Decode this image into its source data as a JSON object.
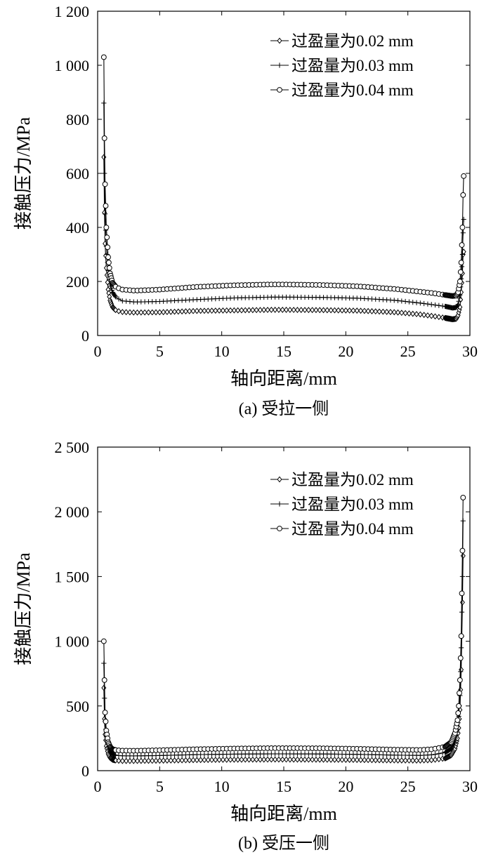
{
  "chart_data": [
    {
      "type": "line",
      "caption": "(a) 受拉一侧",
      "xlabel": "轴向距离/mm",
      "ylabel": "接触压力/MPa",
      "xlim": [
        0,
        30
      ],
      "ylim": [
        0,
        1200
      ],
      "xticks": [
        "0",
        "5",
        "10",
        "15",
        "20",
        "25",
        "30"
      ],
      "yticks": [
        "0",
        "200",
        "400",
        "600",
        "800",
        "1 000",
        "1 200"
      ],
      "legend_position": "top-right",
      "grid": false,
      "series": [
        {
          "name": "过盈量为0.02 mm",
          "marker": "diamond",
          "points": [
            [
              0.5,
              660
            ],
            [
              0.55,
              455
            ],
            [
              0.6,
              340
            ],
            [
              0.7,
              250
            ],
            [
              0.85,
              170
            ],
            [
              1.0,
              130
            ],
            [
              1.2,
              105
            ],
            [
              1.5,
              92
            ],
            [
              2,
              87
            ],
            [
              3,
              85
            ],
            [
              5,
              86
            ],
            [
              8,
              91
            ],
            [
              11,
              93
            ],
            [
              14,
              95
            ],
            [
              15,
              95
            ],
            [
              18,
              94
            ],
            [
              21,
              92
            ],
            [
              24,
              86
            ],
            [
              26,
              78
            ],
            [
              27,
              72
            ],
            [
              28,
              65
            ],
            [
              28.6,
              60
            ],
            [
              28.9,
              62
            ],
            [
              29.05,
              75
            ],
            [
              29.2,
              105
            ],
            [
              29.3,
              160
            ],
            [
              29.4,
              230
            ],
            [
              29.45,
              300
            ],
            [
              29.5,
              310
            ]
          ]
        },
        {
          "name": "过盈量为0.03 mm",
          "marker": "plus",
          "points": [
            [
              0.5,
              860
            ],
            [
              0.55,
              600
            ],
            [
              0.6,
              450
            ],
            [
              0.7,
              330
            ],
            [
              0.85,
              240
            ],
            [
              1.0,
              190
            ],
            [
              1.2,
              160
            ],
            [
              1.5,
              140
            ],
            [
              2,
              128
            ],
            [
              3,
              124
            ],
            [
              5,
              126
            ],
            [
              8,
              133
            ],
            [
              11,
              139
            ],
            [
              14,
              142
            ],
            [
              15,
              142
            ],
            [
              18,
              141
            ],
            [
              21,
              138
            ],
            [
              24,
              130
            ],
            [
              26,
              120
            ],
            [
              27,
              114
            ],
            [
              28,
              108
            ],
            [
              28.6,
              102
            ],
            [
              28.9,
              104
            ],
            [
              29.05,
              115
            ],
            [
              29.2,
              150
            ],
            [
              29.3,
              210
            ],
            [
              29.4,
              300
            ],
            [
              29.45,
              380
            ],
            [
              29.5,
              430
            ]
          ]
        },
        {
          "name": "过盈量为0.04 mm",
          "marker": "circle",
          "points": [
            [
              0.5,
              1030
            ],
            [
              0.55,
              730
            ],
            [
              0.6,
              560
            ],
            [
              0.7,
              400
            ],
            [
              0.85,
              290
            ],
            [
              1.0,
              230
            ],
            [
              1.2,
              195
            ],
            [
              1.5,
              178
            ],
            [
              2,
              170
            ],
            [
              3,
              166
            ],
            [
              5,
              170
            ],
            [
              8,
              180
            ],
            [
              11,
              186
            ],
            [
              14,
              189
            ],
            [
              15,
              189
            ],
            [
              18,
              187
            ],
            [
              21,
              182
            ],
            [
              24,
              172
            ],
            [
              26,
              162
            ],
            [
              27,
              157
            ],
            [
              28,
              150
            ],
            [
              28.6,
              146
            ],
            [
              28.9,
              148
            ],
            [
              29.05,
              160
            ],
            [
              29.2,
              200
            ],
            [
              29.3,
              270
            ],
            [
              29.4,
              400
            ],
            [
              29.45,
              520
            ],
            [
              29.5,
              590
            ]
          ]
        }
      ]
    },
    {
      "type": "line",
      "caption": "(b) 受压一侧",
      "xlabel": "轴向距离/mm",
      "ylabel": "接触压力/MPa",
      "xlim": [
        0,
        30
      ],
      "ylim": [
        0,
        2500
      ],
      "xticks": [
        "0",
        "5",
        "10",
        "15",
        "20",
        "25",
        "30"
      ],
      "yticks": [
        "0",
        "500",
        "1 000",
        "1 500",
        "2 000",
        "2 500"
      ],
      "legend_position": "top-right",
      "grid": false,
      "series": [
        {
          "name": "过盈量为0.02 mm",
          "marker": "diamond",
          "points": [
            [
              0.5,
              640
            ],
            [
              0.55,
              400
            ],
            [
              0.6,
              280
            ],
            [
              0.7,
              190
            ],
            [
              0.85,
              130
            ],
            [
              1.0,
              100
            ],
            [
              1.2,
              85
            ],
            [
              1.5,
              78
            ],
            [
              2,
              75
            ],
            [
              3,
              75
            ],
            [
              5,
              77
            ],
            [
              8,
              82
            ],
            [
              11,
              85
            ],
            [
              14,
              86
            ],
            [
              15,
              86
            ],
            [
              18,
              85
            ],
            [
              21,
              83
            ],
            [
              24,
              79
            ],
            [
              26,
              78
            ],
            [
              27,
              82
            ],
            [
              28,
              95
            ],
            [
              28.5,
              120
            ],
            [
              28.8,
              170
            ],
            [
              29.0,
              250
            ],
            [
              29.1,
              330
            ],
            [
              29.2,
              470
            ],
            [
              29.3,
              780
            ],
            [
              29.4,
              1300
            ],
            [
              29.45,
              1660
            ]
          ]
        },
        {
          "name": "过盈量为0.03 mm",
          "marker": "plus",
          "points": [
            [
              0.5,
              830
            ],
            [
              0.55,
              560
            ],
            [
              0.6,
              380
            ],
            [
              0.7,
              260
            ],
            [
              0.85,
              180
            ],
            [
              1.0,
              145
            ],
            [
              1.2,
              125
            ],
            [
              1.5,
              118
            ],
            [
              2,
              115
            ],
            [
              3,
              114
            ],
            [
              5,
              117
            ],
            [
              8,
              124
            ],
            [
              11,
              128
            ],
            [
              14,
              130
            ],
            [
              15,
              130
            ],
            [
              18,
              129
            ],
            [
              21,
              126
            ],
            [
              24,
              120
            ],
            [
              26,
              118
            ],
            [
              27,
              123
            ],
            [
              28,
              140
            ],
            [
              28.5,
              170
            ],
            [
              28.8,
              230
            ],
            [
              29.0,
              320
            ],
            [
              29.1,
              420
            ],
            [
              29.2,
              580
            ],
            [
              29.3,
              950
            ],
            [
              29.4,
              1500
            ],
            [
              29.45,
              1930
            ]
          ]
        },
        {
          "name": "过盈量为0.04 mm",
          "marker": "circle",
          "points": [
            [
              0.5,
              1000
            ],
            [
              0.55,
              700
            ],
            [
              0.6,
              450
            ],
            [
              0.7,
              310
            ],
            [
              0.85,
              220
            ],
            [
              1.0,
              185
            ],
            [
              1.2,
              165
            ],
            [
              1.5,
              158
            ],
            [
              2,
              155
            ],
            [
              3,
              154
            ],
            [
              5,
              158
            ],
            [
              8,
              166
            ],
            [
              11,
              171
            ],
            [
              14,
              174
            ],
            [
              15,
              174
            ],
            [
              18,
              173
            ],
            [
              21,
              169
            ],
            [
              24,
              162
            ],
            [
              26,
              160
            ],
            [
              27,
              166
            ],
            [
              28,
              185
            ],
            [
              28.5,
              220
            ],
            [
              28.8,
              290
            ],
            [
              29.0,
              390
            ],
            [
              29.1,
              500
            ],
            [
              29.2,
              700
            ],
            [
              29.3,
              1040
            ],
            [
              29.4,
              1700
            ],
            [
              29.45,
              2110
            ]
          ]
        }
      ]
    }
  ]
}
